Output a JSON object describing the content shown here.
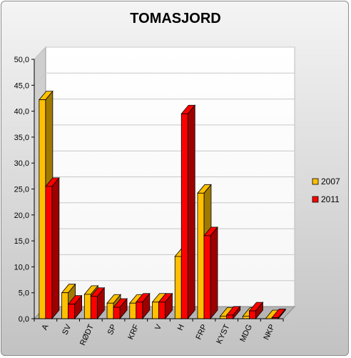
{
  "chart_data": {
    "type": "bar",
    "title": "TOMASJORD",
    "categories": [
      "A",
      "SV",
      "RØDT",
      "SP",
      "KRF",
      "V",
      "H",
      "FRP",
      "KYST",
      "MDG",
      "NKP"
    ],
    "series": [
      {
        "name": "2007",
        "values": [
          42.2,
          5.0,
          4.7,
          3.0,
          3.0,
          3.2,
          12.0,
          24.2,
          0.5,
          0.5,
          0.0
        ],
        "color": "#ffc000",
        "side_color": "#a07a00"
      },
      {
        "name": "2011",
        "values": [
          25.5,
          2.8,
          4.3,
          2.2,
          3.2,
          3.2,
          39.5,
          16.0,
          0.7,
          1.5,
          0.2
        ],
        "color": "#ff0000",
        "side_color": "#9e0000"
      }
    ],
    "ylim": [
      0,
      50
    ],
    "yticks": [
      "0,0",
      "5,0",
      "10,0",
      "15,0",
      "20,0",
      "25,0",
      "30,0",
      "35,0",
      "40,0",
      "45,0",
      "50,0"
    ],
    "grid": true,
    "legend_position": "right"
  }
}
